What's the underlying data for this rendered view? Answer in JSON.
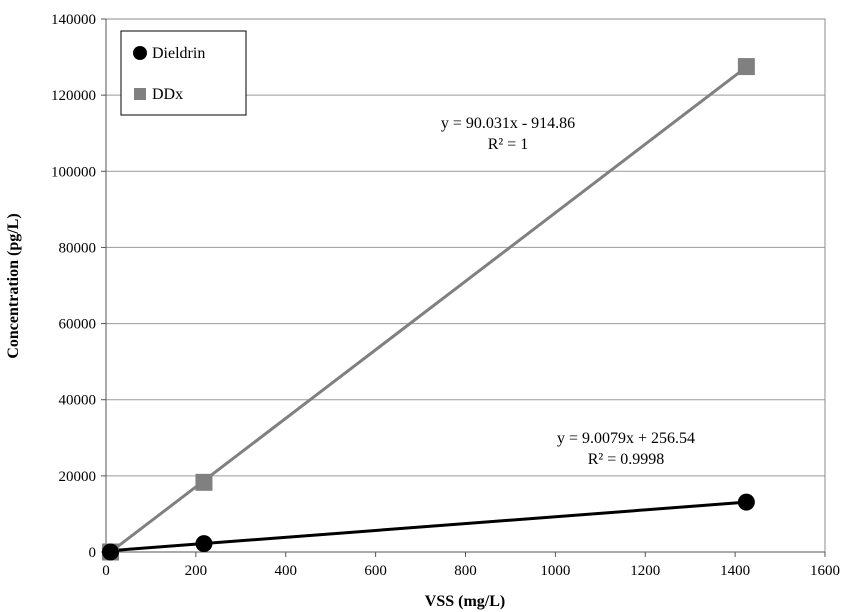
{
  "chart_data": {
    "type": "scatter",
    "title": "",
    "xlabel": "VSS (mg/L)",
    "ylabel": "Concentration (pg/L)",
    "xlim": [
      0,
      1600
    ],
    "ylim": [
      0,
      140000
    ],
    "x_ticks": [
      0,
      200,
      400,
      600,
      800,
      1000,
      1200,
      1400,
      1600
    ],
    "y_ticks": [
      0,
      20000,
      40000,
      60000,
      80000,
      100000,
      120000,
      140000
    ],
    "x_tick_labels": [
      "0",
      "200",
      "400",
      "600",
      "800",
      "1000",
      "1200",
      "1400",
      "1600"
    ],
    "y_tick_labels": [
      "0",
      "20000",
      "40000",
      "60000",
      "80000",
      "100000",
      "120000",
      "140000"
    ],
    "grid": "horizontal",
    "legend_position": "top-left",
    "series": [
      {
        "name": "Dieldrin",
        "marker": "circle",
        "color": "#000000",
        "x": [
          10,
          218,
          1425
        ],
        "y": [
          0,
          2200,
          13100
        ],
        "trendline": {
          "slope": 9.0079,
          "intercept": 256.54,
          "equation": "y = 9.0079x + 256.54",
          "r_squared": "R² = 0.9998"
        }
      },
      {
        "name": "DDx",
        "marker": "square",
        "color": "#808080",
        "x": [
          10,
          218,
          1425
        ],
        "y": [
          0,
          18300,
          127500
        ],
        "trendline": {
          "slope": 90.031,
          "intercept": -914.86,
          "equation": "y = 90.031x - 914.86",
          "r_squared": "R² = 1"
        }
      }
    ]
  }
}
